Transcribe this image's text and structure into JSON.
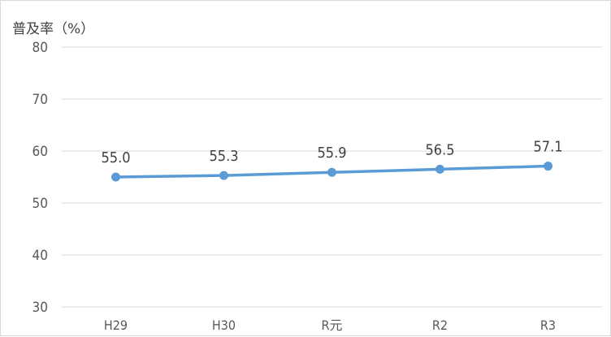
{
  "chart_data": {
    "type": "line",
    "title": "",
    "ylabel": "普及率（%）",
    "xlabel": "",
    "categories": [
      "H29",
      "H30",
      "R元",
      "R2",
      "R3"
    ],
    "series": [
      {
        "values": [
          55.0,
          55.3,
          55.9,
          56.5,
          57.1
        ],
        "color": "#5b9bd5"
      }
    ],
    "data_labels": [
      "55.0",
      "55.3",
      "55.9",
      "56.5",
      "57.1"
    ],
    "ylim": [
      30,
      80
    ],
    "yticks": [
      30,
      40,
      50,
      60,
      70,
      80
    ],
    "grid": true,
    "legend": "none"
  }
}
